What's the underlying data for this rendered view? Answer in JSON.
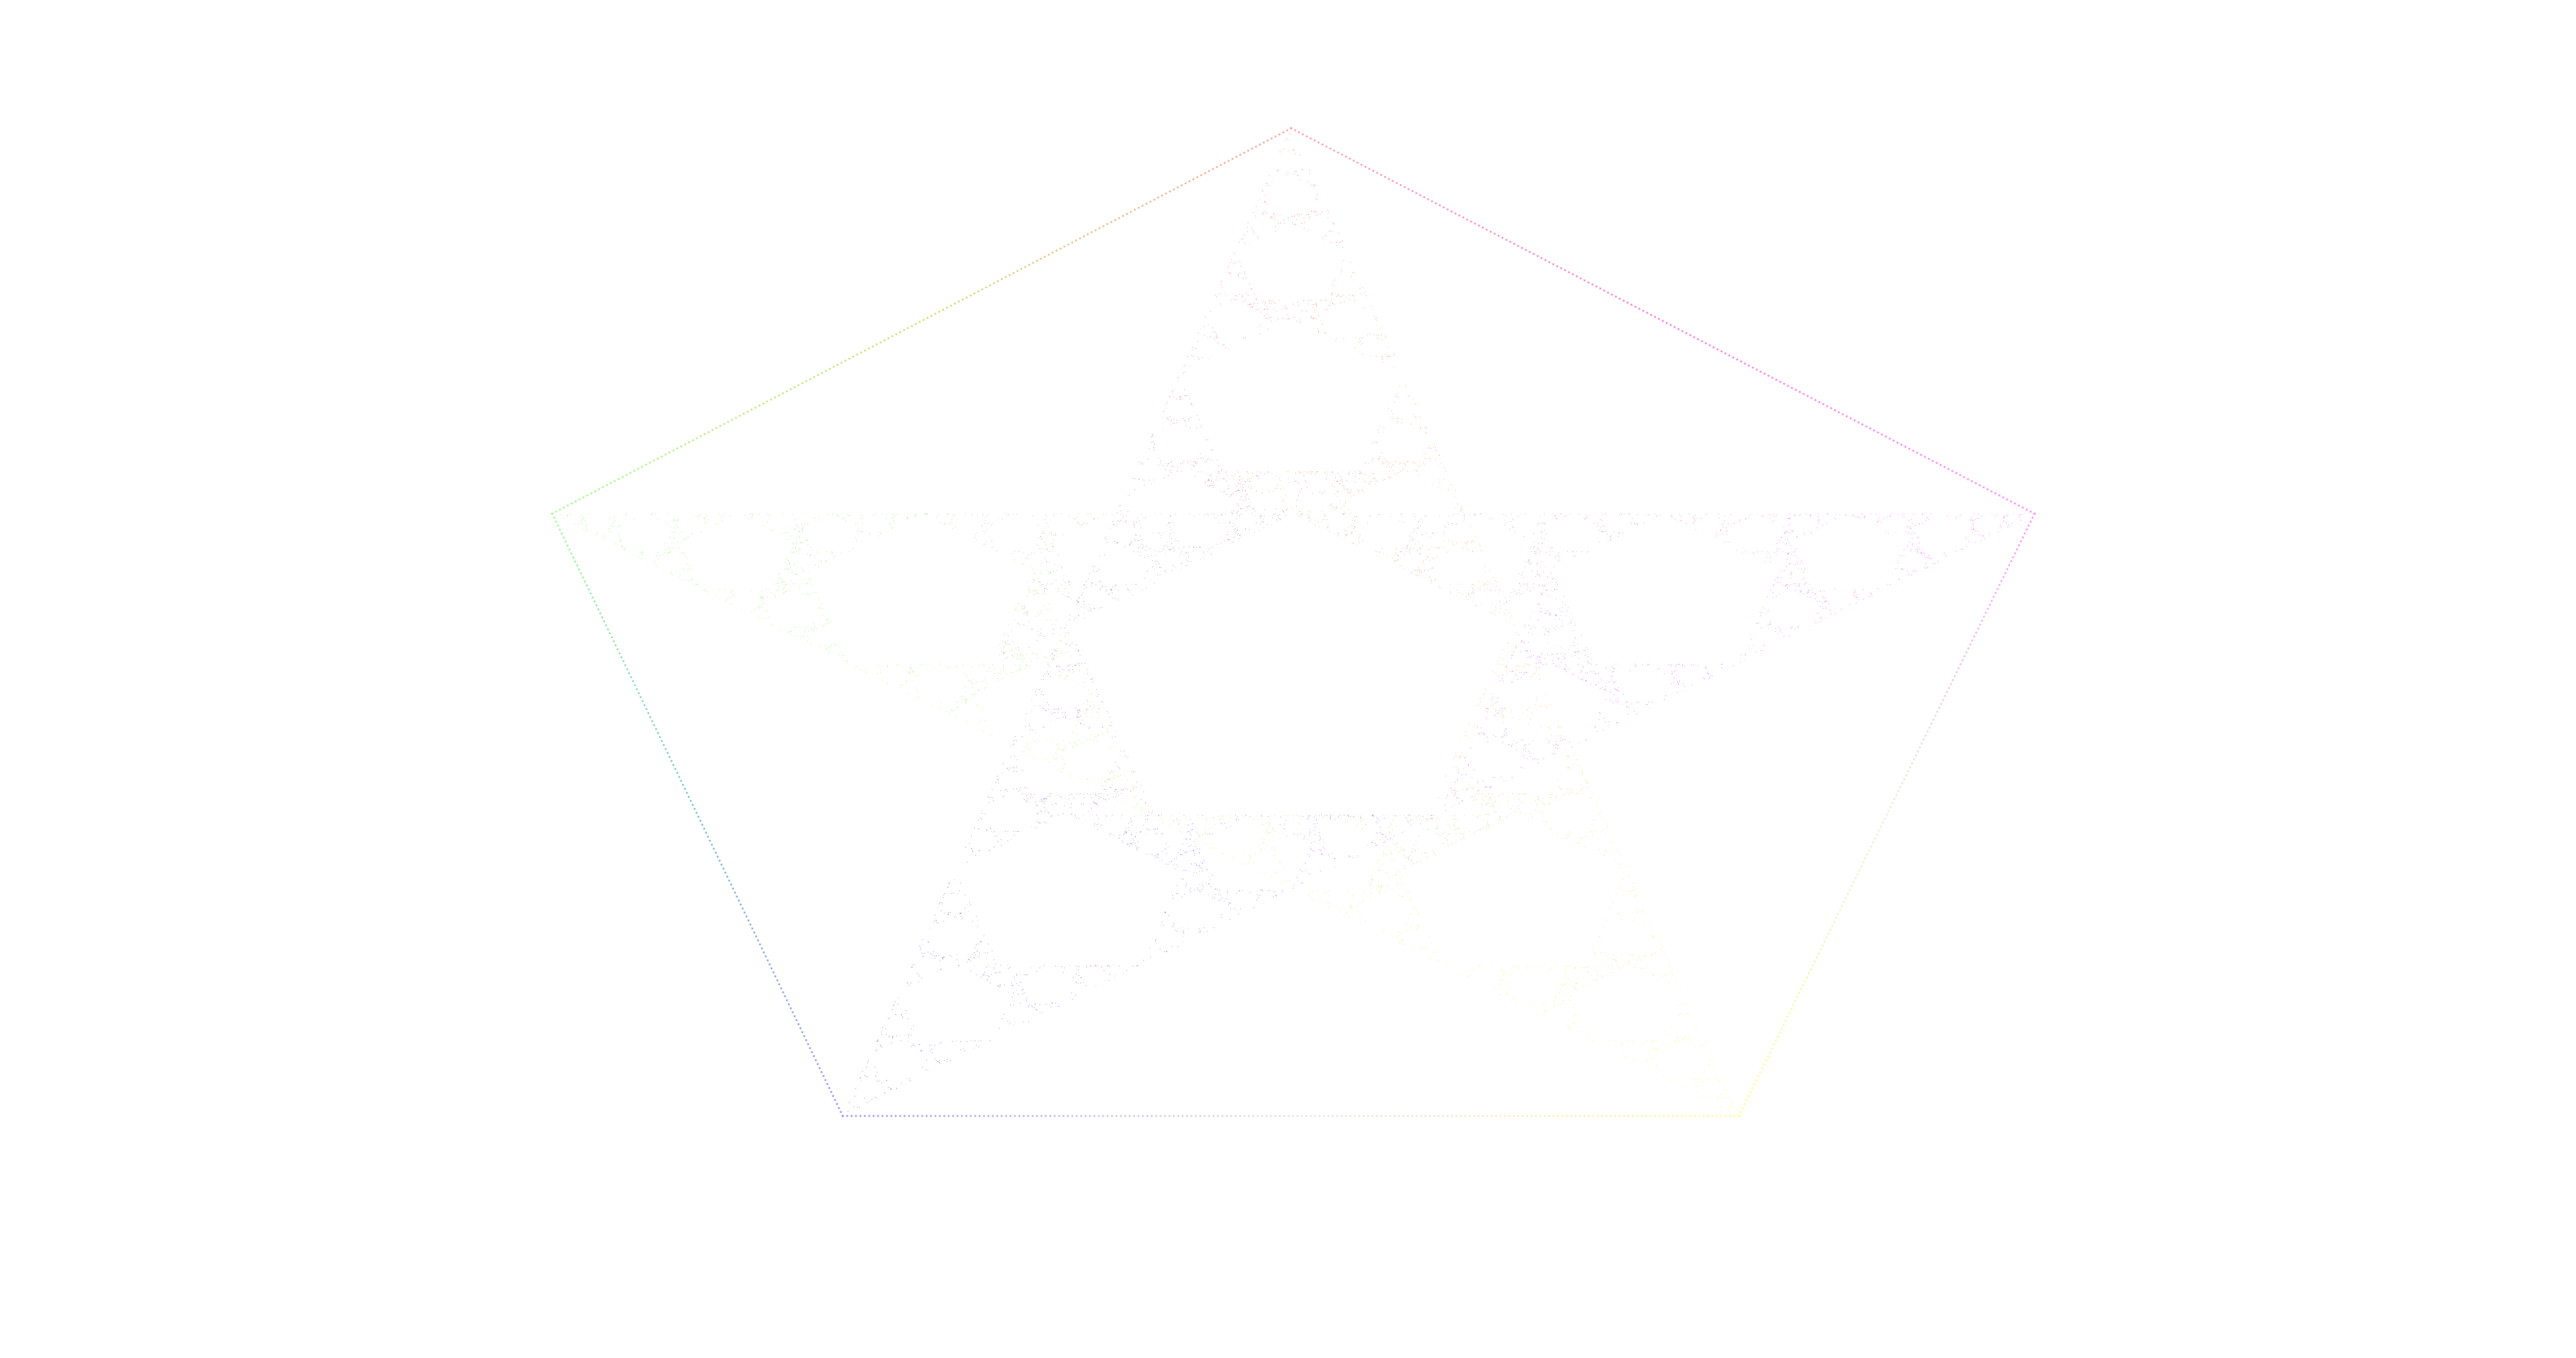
{
  "figure": {
    "subject": "pentaflake",
    "background_color": "#ffffff",
    "outline": "dotted",
    "vertex_colors": {
      "top": "#ff8080",
      "upper_right": "#ff66ff",
      "lower_right": "#ffff66",
      "lower_left": "#8066ff",
      "upper_left": "#80ff66"
    },
    "edge_colors": {
      "top_to_upper_right": "#ff4dd2",
      "upper_right_to_lower_right": "#d9f0c0",
      "lower_right_to_lower_left": "#d8d8e8",
      "lower_left_to_upper_left": "#4da6c8",
      "upper_left_to_top": "#c8d040"
    },
    "fill_alpha": 0.55
  }
}
